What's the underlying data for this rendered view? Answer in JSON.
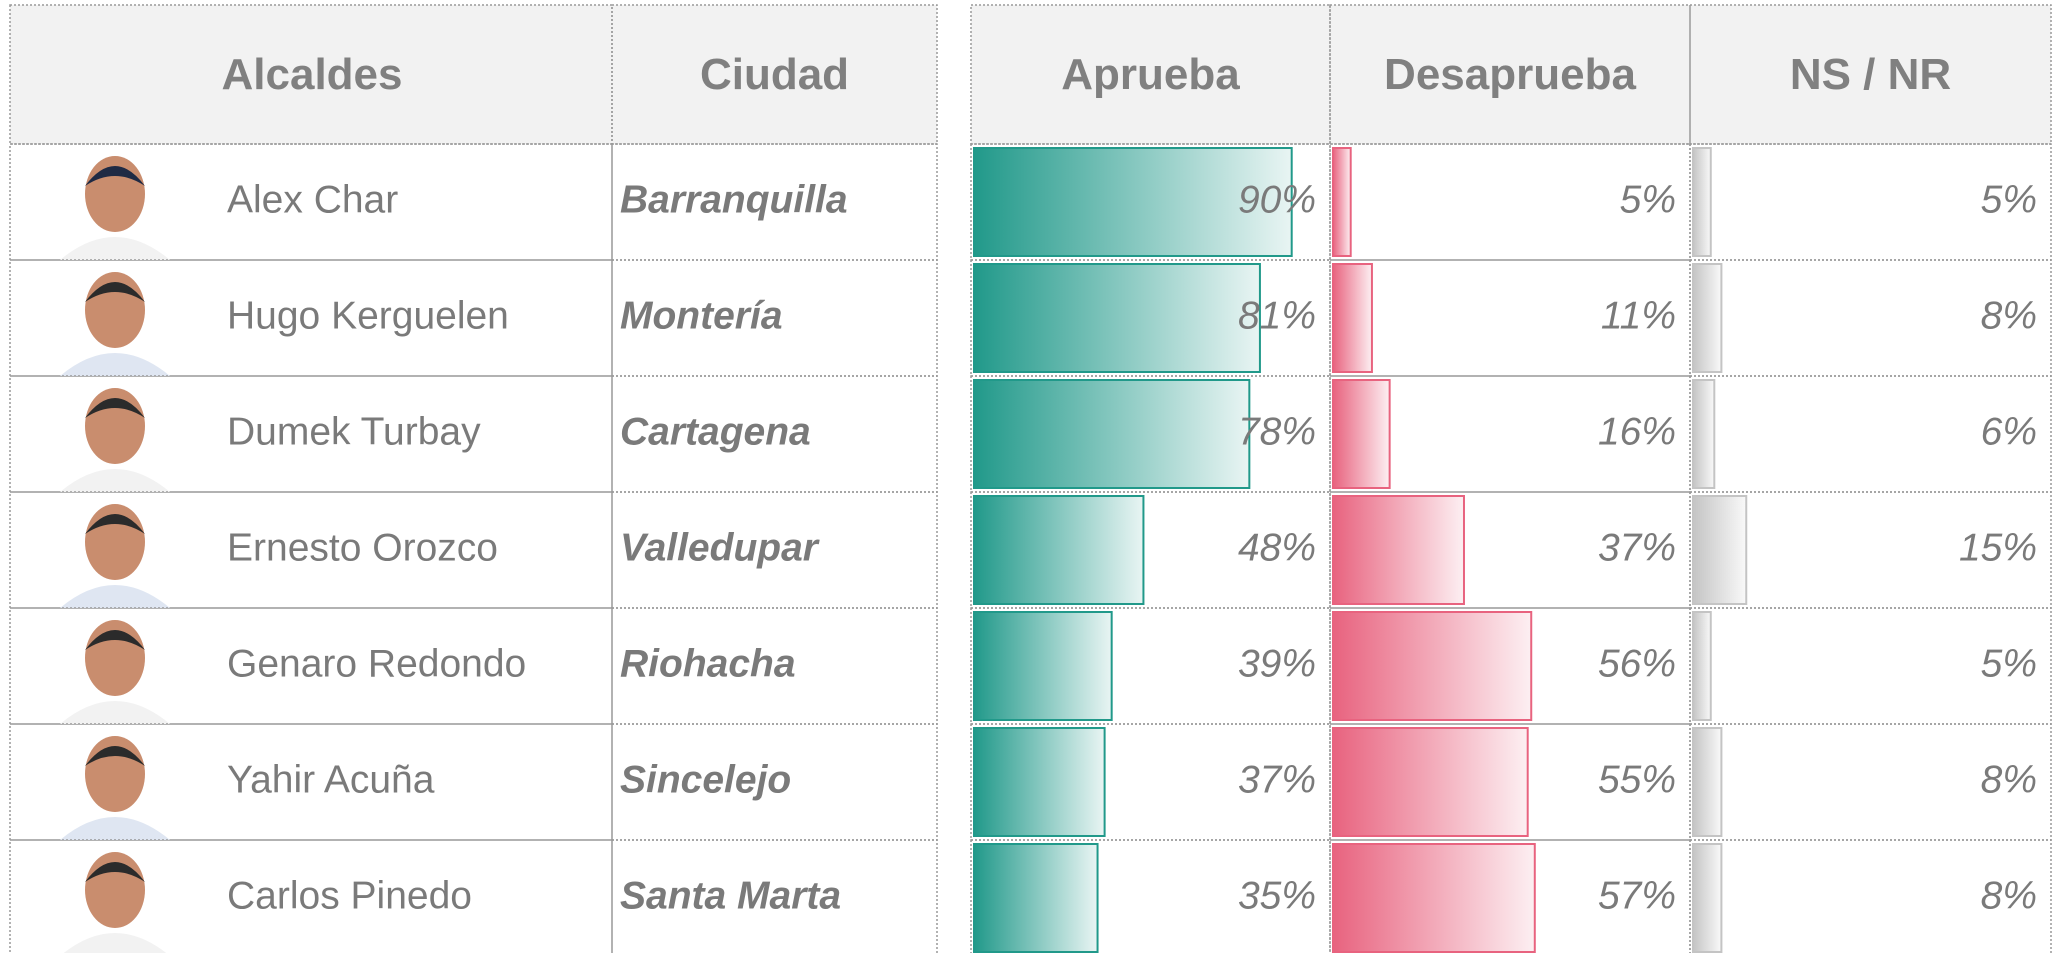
{
  "table": {
    "headers": [
      "Alcaldes",
      "Ciudad",
      "Aprueba",
      "Desaprueba",
      "NS / NR"
    ],
    "xlim": [
      0,
      100
    ],
    "colors": [
      "#21998a",
      "#e8637f",
      "#c4c4c4"
    ],
    "rows": [
      {
        "name": "Alex Char",
        "city": "Barranquilla",
        "values": [
          90,
          5,
          5
        ],
        "value_labels": [
          "90%",
          "5%",
          "5%"
        ]
      },
      {
        "name": "Hugo Kerguelen",
        "city": "Montería",
        "values": [
          81,
          11,
          8
        ],
        "value_labels": [
          "81%",
          "11%",
          "8%"
        ]
      },
      {
        "name": "Dumek Turbay",
        "city": "Cartagena",
        "values": [
          78,
          16,
          6
        ],
        "value_labels": [
          "78%",
          "16%",
          "6%"
        ]
      },
      {
        "name": "Ernesto Orozco",
        "city": "Valledupar",
        "values": [
          48,
          37,
          15
        ],
        "value_labels": [
          "48%",
          "37%",
          "15%"
        ]
      },
      {
        "name": "Genaro Redondo",
        "city": "Riohacha",
        "values": [
          39,
          56,
          5
        ],
        "value_labels": [
          "39%",
          "56%",
          "5%"
        ]
      },
      {
        "name": "Yahir Acuña",
        "city": "Sincelejo",
        "values": [
          37,
          55,
          8
        ],
        "value_labels": [
          "37%",
          "55%",
          "8%"
        ]
      },
      {
        "name": "Carlos Pinedo",
        "city": "Santa Marta",
        "values": [
          35,
          57,
          8
        ],
        "value_labels": [
          "35%",
          "57%",
          "8%"
        ]
      }
    ]
  }
}
